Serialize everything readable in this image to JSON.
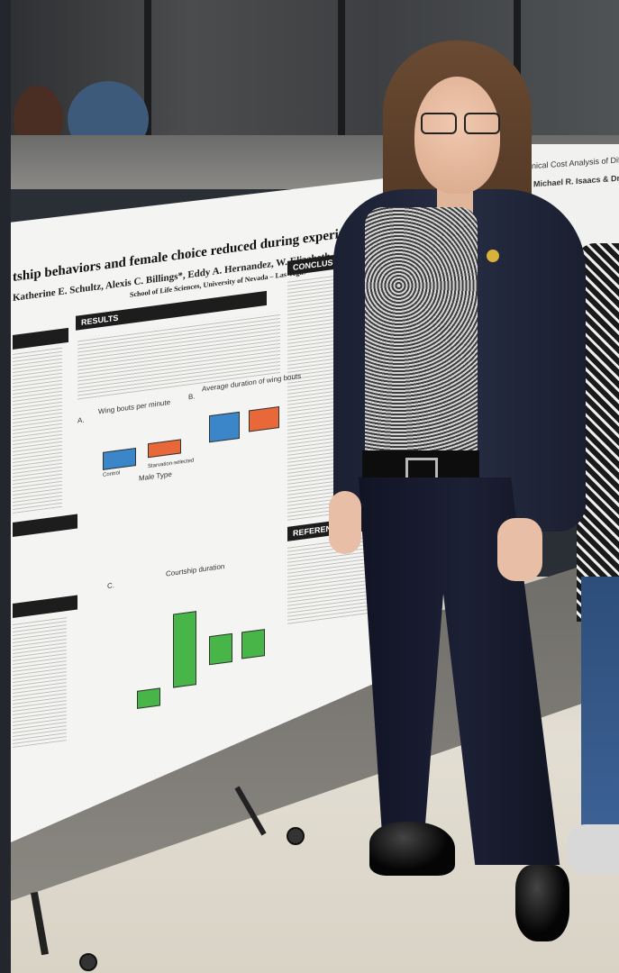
{
  "poster": {
    "title": "tship behaviors and female choice reduced during experimental sta",
    "authors": "Katherine E. Schultz, Alexis C. Billings*, Eddy A. Hernandez, W. Elizabeth Jones, Donald K",
    "affiliation": "School of Life Sciences, University of Nevada – Las Vegas",
    "sections": {
      "results": "RESULTS",
      "conclusions": "CONCLUSIONS",
      "references": "REFERENCES"
    },
    "plots": {
      "a_label": "A.",
      "a_title": "Wing bouts per minute",
      "b_label": "B.",
      "b_title": "Average duration of wing bouts",
      "c_label": "C.",
      "c_title": "Courtship duration",
      "x_axis": "Male Type",
      "cat_control": "Control",
      "cat_starvation": "Starvation-selected"
    }
  },
  "right_poster": {
    "title": "nical Cost Analysis of Different",
    "authors": "Michael R. Isaacs & Dr. David"
  },
  "colors": {
    "control_box": "#3a86c8",
    "starvation_box": "#e8683a",
    "courtship_box": "#47b548"
  }
}
